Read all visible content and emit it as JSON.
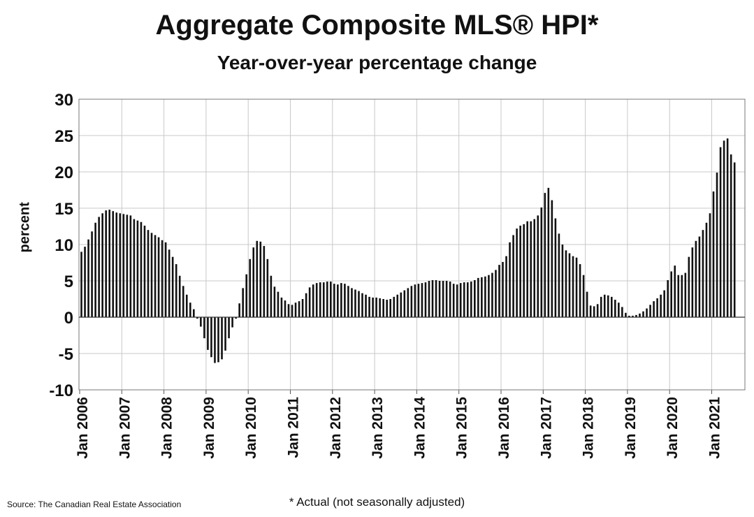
{
  "chart_data": {
    "type": "bar",
    "title": "Aggregate Composite MLS® HPI*",
    "subtitle": "Year-over-year percentage change",
    "ylabel": "percent",
    "xlabel": "",
    "ylim": [
      -10,
      30
    ],
    "yticks": [
      30,
      25,
      20,
      15,
      10,
      5,
      0,
      -5,
      -10
    ],
    "x_tick_labels": [
      "Jan 2006",
      "Jan 2007",
      "Jan 2008",
      "Jan 2009",
      "Jan 2010",
      "Jan 2011",
      "Jan 2012",
      "Jan 2013",
      "Jan 2014",
      "Jan 2015",
      "Jan 2016",
      "Jan 2017",
      "Jan 2018",
      "Jan 2019",
      "Jan 2020",
      "Jan 2021"
    ],
    "grid": true,
    "start_month": "Jan 2006",
    "bar_color": "#111111",
    "values": [
      9.0,
      9.7,
      10.7,
      11.8,
      13.0,
      13.8,
      14.3,
      14.7,
      14.8,
      14.6,
      14.4,
      14.3,
      14.2,
      14.1,
      14.0,
      13.5,
      13.3,
      13.1,
      12.6,
      12.0,
      11.6,
      11.3,
      11.0,
      10.6,
      10.3,
      9.3,
      8.3,
      7.3,
      5.7,
      4.3,
      3.1,
      2.0,
      1.1,
      -0.2,
      -1.3,
      -2.9,
      -4.5,
      -5.5,
      -6.3,
      -6.2,
      -5.8,
      -4.6,
      -2.9,
      -1.4,
      -0.2,
      1.9,
      4.0,
      5.9,
      8.0,
      9.6,
      10.5,
      10.4,
      9.8,
      8.0,
      5.7,
      4.2,
      3.5,
      2.7,
      2.3,
      1.8,
      1.7,
      2.0,
      2.2,
      2.5,
      3.3,
      4.1,
      4.5,
      4.7,
      4.8,
      4.8,
      4.9,
      4.9,
      4.6,
      4.5,
      4.7,
      4.6,
      4.3,
      4.0,
      3.8,
      3.6,
      3.3,
      3.1,
      2.8,
      2.7,
      2.7,
      2.6,
      2.5,
      2.4,
      2.5,
      2.8,
      3.1,
      3.4,
      3.7,
      4.0,
      4.3,
      4.5,
      4.6,
      4.7,
      4.8,
      5.0,
      5.1,
      5.1,
      5.0,
      5.0,
      5.0,
      4.9,
      4.6,
      4.5,
      4.7,
      4.8,
      4.8,
      4.9,
      5.1,
      5.4,
      5.5,
      5.6,
      5.8,
      6.1,
      6.5,
      7.2,
      7.6,
      8.4,
      10.3,
      11.3,
      12.2,
      12.6,
      12.8,
      13.2,
      13.2,
      13.5,
      14.0,
      15.1,
      17.1,
      17.8,
      16.1,
      13.6,
      11.5,
      10.0,
      9.2,
      8.8,
      8.4,
      8.2,
      7.3,
      5.8,
      3.5,
      1.6,
      1.5,
      1.8,
      2.8,
      3.1,
      3.0,
      2.8,
      2.4,
      2.0,
      1.4,
      0.6,
      0.2,
      0.2,
      0.3,
      0.5,
      0.8,
      1.2,
      1.7,
      2.2,
      2.6,
      3.1,
      3.7,
      5.1,
      6.3,
      7.1,
      5.8,
      5.8,
      6.1,
      8.3,
      9.6,
      10.5,
      11.1,
      12.0,
      13.0,
      14.3,
      17.3,
      19.9,
      23.4,
      24.3,
      24.6,
      22.4,
      21.3
    ]
  },
  "source": "Source: The Canadian Real Estate Association",
  "footnote": "* Actual (not seasonally adjusted)"
}
